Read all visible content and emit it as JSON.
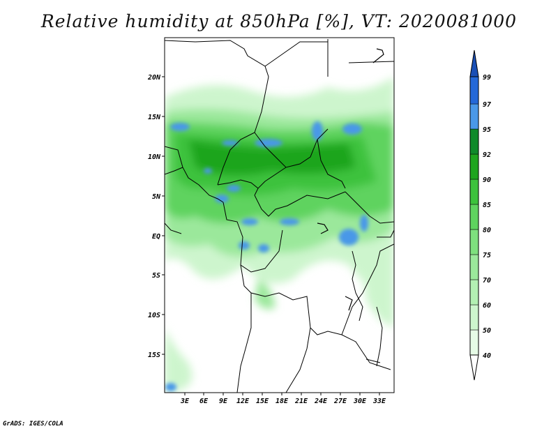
{
  "title": "Relative humidity at 850hPa [%], VT: 2020081000",
  "credit": "GrADS: IGES/COLA",
  "map": {
    "lat_labels": [
      "20N",
      "15N",
      "10N",
      "5N",
      "EQ",
      "5S",
      "10S",
      "15S"
    ],
    "lon_labels": [
      "3E",
      "6E",
      "9E",
      "12E",
      "15E",
      "18E",
      "21E",
      "24E",
      "27E",
      "30E",
      "33E"
    ]
  },
  "colorbar": {
    "levels": [
      "40",
      "50",
      "60",
      "70",
      "75",
      "80",
      "85",
      "90",
      "92",
      "95",
      "97",
      "99"
    ],
    "colors": [
      "#ffffff",
      "#e6fbe6",
      "#cdf5cd",
      "#b3f0b3",
      "#9be89b",
      "#7ee07e",
      "#5fd35f",
      "#3cc23c",
      "#1fa51f",
      "#0f8a2a",
      "#4a98e8",
      "#2468d8",
      "#1a4fb5"
    ]
  }
}
